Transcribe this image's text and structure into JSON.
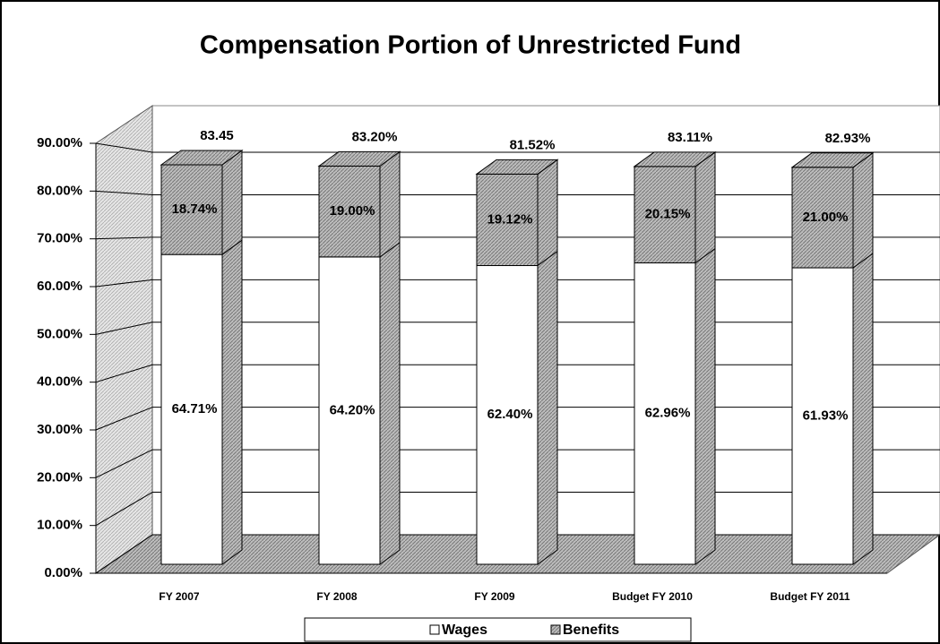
{
  "chart_data": {
    "type": "stacked_bar_3d",
    "title": "Compensation Portion of Unrestricted Fund",
    "categories": [
      "FY 2007",
      "FY 2008",
      "FY 2009",
      "Budget FY 2010",
      "Budget FY 2011"
    ],
    "series": [
      {
        "name": "Wages",
        "color": "#ffffff",
        "values": [
          64.71,
          64.2,
          62.4,
          62.96,
          61.93
        ],
        "value_labels": [
          "64.71%",
          "64.20%",
          "62.40%",
          "62.96%",
          "61.93%"
        ]
      },
      {
        "name": "Benefits",
        "color": "#c8c8c8",
        "values": [
          18.74,
          19.0,
          19.12,
          20.15,
          21.0
        ],
        "value_labels": [
          "18.74%",
          "19.00%",
          "19.12%",
          "20.15%",
          "21.00%"
        ]
      }
    ],
    "annotations": [
      "83.45",
      "83.20%",
      "81.52%",
      "83.11%",
      "82.93%"
    ],
    "ylim": [
      0,
      90
    ],
    "yticks": [
      {
        "value": 0,
        "label": "0.00%"
      },
      {
        "value": 10,
        "label": "10.00%"
      },
      {
        "value": 20,
        "label": "20.00%"
      },
      {
        "value": 30,
        "label": "30.00%"
      },
      {
        "value": 40,
        "label": "40.00%"
      },
      {
        "value": 50,
        "label": "50.00%"
      },
      {
        "value": 60,
        "label": "60.00%"
      },
      {
        "value": 70,
        "label": "70.00%"
      },
      {
        "value": 80,
        "label": "80.00%"
      },
      {
        "value": 90,
        "label": "90.00%"
      }
    ],
    "grid": true,
    "legend": "bottom"
  }
}
